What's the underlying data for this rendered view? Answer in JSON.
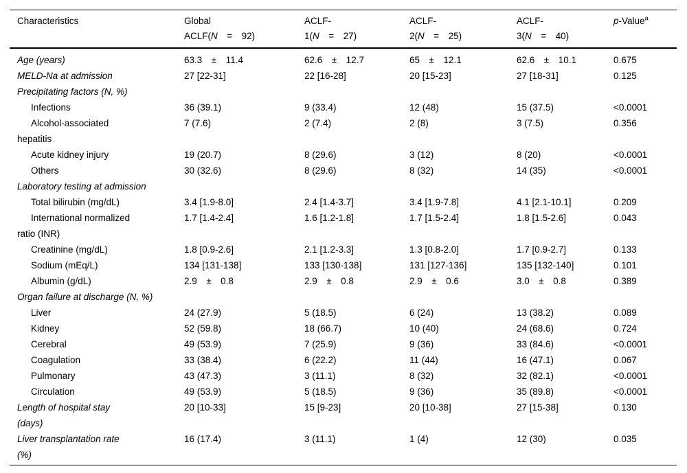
{
  "colors": {
    "text": "#000000",
    "rule": "#000000",
    "background": "#ffffff"
  },
  "table": {
    "header": {
      "characteristics": "Characteristics",
      "groups": [
        {
          "line1": "Global",
          "line2_pre": "ACLF(",
          "line2_n": "N",
          "line2_post": " = 92)"
        },
        {
          "line1": "ACLF-",
          "line2_pre": "1(",
          "line2_n": "N",
          "line2_post": " = 27)"
        },
        {
          "line1": "ACLF-",
          "line2_pre": "2(",
          "line2_n": "N",
          "line2_post": " = 25)"
        },
        {
          "line1": "ACLF-",
          "line2_pre": "3(",
          "line2_n": "N",
          "line2_post": " = 40)"
        }
      ],
      "pvalue": {
        "p": "p",
        "rest": "-Value",
        "sup": "a"
      }
    },
    "rows": [
      {
        "label": "Age (years)",
        "style": "top",
        "values": [
          "63.3 ± 11.4",
          "62.6 ± 12.7",
          "65 ± 12.1",
          "62.6 ± 10.1",
          "0.675"
        ]
      },
      {
        "label": "MELD-Na at admission",
        "style": "top",
        "values": [
          "27 [22-31]",
          "22 [16-28]",
          "20 [15-23]",
          "27 [18-31]",
          "0.125"
        ]
      },
      {
        "label": "Precipitating factors (N, %)",
        "style": "section",
        "values": []
      },
      {
        "label": "Infections",
        "style": "item",
        "values": [
          "36 (39.1)",
          "9 (33.4)",
          "12 (48)",
          "15 (37.5)",
          "<0.0001"
        ]
      },
      {
        "label": "Alcohol-associated\nhepatitis",
        "style": "item",
        "values": [
          "7 (7.6)",
          "2 (7.4)",
          "2 (8)",
          "3 (7.5)",
          "0.356"
        ]
      },
      {
        "label": "Acute kidney injury",
        "style": "item",
        "values": [
          "19 (20.7)",
          "8 (29.6)",
          "3 (12)",
          "8 (20)",
          "<0.0001"
        ]
      },
      {
        "label": "Others",
        "style": "item",
        "values": [
          "30 (32.6)",
          "8 (29.6)",
          "8 (32)",
          "14 (35)",
          "<0.0001"
        ]
      },
      {
        "label": "Laboratory testing at admission",
        "style": "section",
        "values": []
      },
      {
        "label": "Total bilirubin (mg/dL)",
        "style": "item",
        "values": [
          "3.4 [1.9-8.0]",
          "2.4 [1.4-3.7]",
          "3.4 [1.9-7.8]",
          "4.1 [2.1-10.1]",
          "0.209"
        ]
      },
      {
        "label": "International normalized\nratio (INR)",
        "style": "item",
        "values": [
          "1.7 [1.4-2.4]",
          "1.6 [1.2-1.8]",
          "1.7 [1.5-2.4]",
          "1.8 [1.5-2.6]",
          "0.043"
        ]
      },
      {
        "label": "Creatinine (mg/dL)",
        "style": "item",
        "values": [
          "1.8 [0.9-2.6]",
          "2.1 [1.2-3.3]",
          "1.3 [0.8-2.0]",
          "1.7 [0.9-2.7]",
          "0.133"
        ]
      },
      {
        "label": "Sodium (mEq/L)",
        "style": "item",
        "values": [
          "134 [131-138]",
          "133 [130-138]",
          "131 [127-136]",
          "135 [132-140]",
          "0.101"
        ]
      },
      {
        "label": "Albumin (g/dL)",
        "style": "item",
        "values": [
          "2.9 ± 0.8",
          "2.9 ± 0.8",
          "2.9 ± 0.6",
          "3.0 ± 0.8",
          "0.389"
        ]
      },
      {
        "label": "Organ failure at discharge (N, %)",
        "style": "section",
        "values": []
      },
      {
        "label": "Liver",
        "style": "item",
        "values": [
          "24 (27.9)",
          "5 (18.5)",
          "6 (24)",
          "13 (38.2)",
          "0.089"
        ]
      },
      {
        "label": "Kidney",
        "style": "item",
        "values": [
          "52 (59.8)",
          "18 (66.7)",
          "10 (40)",
          "24 (68.6)",
          "0.724"
        ]
      },
      {
        "label": "Cerebral",
        "style": "item",
        "values": [
          "49 (53.9)",
          "7 (25.9)",
          "9 (36)",
          "33 (84.6)",
          "<0.0001"
        ]
      },
      {
        "label": "Coagulation",
        "style": "item",
        "values": [
          "33 (38.4)",
          "6 (22.2)",
          "11 (44)",
          "16 (47.1)",
          "0.067"
        ]
      },
      {
        "label": "Pulmonary",
        "style": "item",
        "values": [
          "43 (47.3)",
          "3 (11.1)",
          "8 (32)",
          "32 (82.1)",
          "<0.0001"
        ]
      },
      {
        "label": "Circulation",
        "style": "item",
        "values": [
          "49 (53.9)",
          "5 (18.5)",
          "9 (36)",
          "35 (89.8)",
          "<0.0001"
        ]
      },
      {
        "label": "Length of hospital stay\n(days)",
        "style": "top",
        "values": [
          "20 [10-33]",
          "15 [9-23]",
          "20 [10-38]",
          "27 [15-38]",
          "0.130"
        ]
      },
      {
        "label": "Liver transplantation rate\n(%)",
        "style": "top",
        "values": [
          "16 (17.4)",
          "3 (11.1)",
          "1 (4)",
          "12 (30)",
          "0.035"
        ]
      }
    ]
  }
}
